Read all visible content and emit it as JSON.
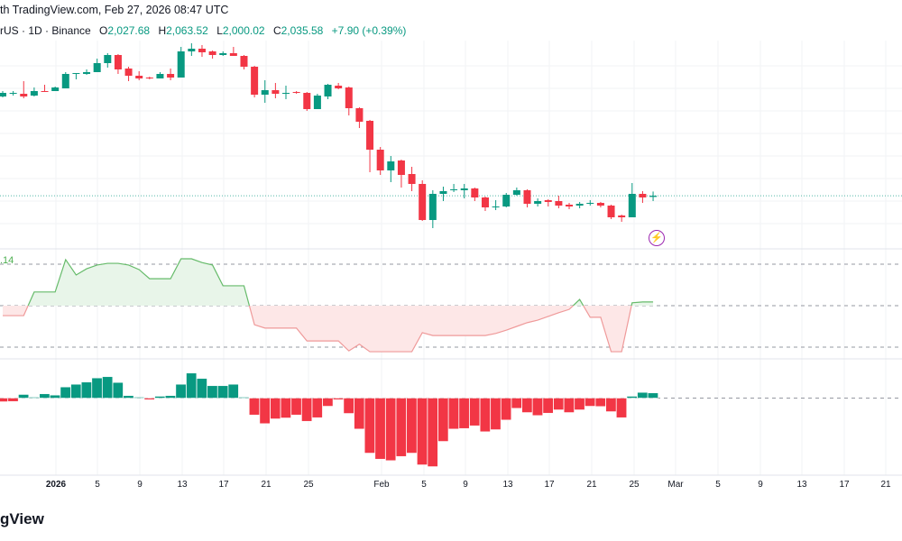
{
  "header": {
    "attribution": "th TradingView.com, Feb 27, 2026 08:47 UTC",
    "symbol_info": "rUS · 1D · Binance",
    "open_label": "O",
    "open": "2,027.68",
    "high_label": "H",
    "high": "2,063.52",
    "low_label": "L",
    "low": "2,000.02",
    "close_label": "C",
    "close": "2,035.58",
    "change": "+7.90 (+0.39%)"
  },
  "oscillator_label": ".14",
  "footer_logo": "gView",
  "colors": {
    "up": "#089981",
    "down": "#f23645",
    "osc_up": "#66bb6a",
    "osc_down": "#ef9a9a",
    "alert": "#9c27b0"
  },
  "icons": {
    "alert": "lightning-icon"
  },
  "chart_data": {
    "type": "candlestick",
    "x_tick_labels": [
      "2026",
      "5",
      "9",
      "13",
      "17",
      "21",
      "25",
      "Feb",
      "5",
      "9",
      "13",
      "17",
      "21",
      "25",
      "Mar",
      "5",
      "9",
      "13",
      "17",
      "21"
    ],
    "last_price": 2035.58,
    "ohlc": [
      [
        2696,
        2732,
        2690,
        2720
      ],
      [
        2714,
        2732,
        2702,
        2720
      ],
      [
        2714,
        2798,
        2684,
        2696
      ],
      [
        2702,
        2756,
        2696,
        2732
      ],
      [
        2732,
        2774,
        2726,
        2726
      ],
      [
        2732,
        2762,
        2732,
        2756
      ],
      [
        2750,
        2858,
        2750,
        2846
      ],
      [
        2846,
        2852,
        2810,
        2852
      ],
      [
        2846,
        2876,
        2840,
        2858
      ],
      [
        2858,
        2948,
        2858,
        2918
      ],
      [
        2918,
        2984,
        2888,
        2972
      ],
      [
        2972,
        2978,
        2846,
        2876
      ],
      [
        2882,
        2894,
        2798,
        2834
      ],
      [
        2834,
        2864,
        2804,
        2816
      ],
      [
        2822,
        2828,
        2810,
        2816
      ],
      [
        2816,
        2858,
        2816,
        2846
      ],
      [
        2846,
        2882,
        2804,
        2822
      ],
      [
        2822,
        3026,
        2822,
        2996
      ],
      [
        2996,
        3050,
        2966,
        3014
      ],
      [
        3014,
        3038,
        2960,
        2990
      ],
      [
        2996,
        3002,
        2948,
        2972
      ],
      [
        2972,
        2996,
        2966,
        2984
      ],
      [
        2984,
        3026,
        2966,
        2966
      ],
      [
        2966,
        2972,
        2876,
        2894
      ],
      [
        2894,
        2900,
        2690,
        2708
      ],
      [
        2708,
        2804,
        2654,
        2738
      ],
      [
        2738,
        2786,
        2684,
        2714
      ],
      [
        2714,
        2768,
        2678,
        2720
      ],
      [
        2726,
        2732,
        2714,
        2720
      ],
      [
        2720,
        2726,
        2600,
        2612
      ],
      [
        2612,
        2714,
        2612,
        2702
      ],
      [
        2696,
        2780,
        2678,
        2774
      ],
      [
        2768,
        2786,
        2744,
        2750
      ],
      [
        2756,
        2762,
        2570,
        2618
      ],
      [
        2618,
        2624,
        2486,
        2528
      ],
      [
        2534,
        2540,
        2192,
        2342
      ],
      [
        2342,
        2360,
        2174,
        2204
      ],
      [
        2204,
        2300,
        2126,
        2264
      ],
      [
        2270,
        2276,
        2090,
        2174
      ],
      [
        2180,
        2228,
        2066,
        2114
      ],
      [
        2114,
        2138,
        1868,
        1874
      ],
      [
        1874,
        2072,
        1820,
        2048
      ],
      [
        2048,
        2096,
        2000,
        2066
      ],
      [
        2072,
        2114,
        2060,
        2078
      ],
      [
        2072,
        2114,
        2018,
        2084
      ],
      [
        2084,
        2090,
        2000,
        2024
      ],
      [
        2024,
        2030,
        1934,
        1958
      ],
      [
        1958,
        2006,
        1940,
        1964
      ],
      [
        1964,
        2054,
        1958,
        2042
      ],
      [
        2042,
        2090,
        2036,
        2072
      ],
      [
        2072,
        2078,
        1958,
        1982
      ],
      [
        1982,
        2018,
        1964,
        2000
      ],
      [
        2006,
        2012,
        1964,
        1994
      ],
      [
        2000,
        2036,
        1952,
        1970
      ],
      [
        1976,
        1988,
        1946,
        1964
      ],
      [
        1970,
        1994,
        1952,
        1982
      ],
      [
        1982,
        2006,
        1970,
        1988
      ],
      [
        1988,
        1994,
        1958,
        1970
      ],
      [
        1970,
        1976,
        1880,
        1892
      ],
      [
        1904,
        1910,
        1862,
        1892
      ],
      [
        1892,
        2120,
        1892,
        2048
      ],
      [
        2048,
        2066,
        1988,
        2024
      ],
      [
        2027.68,
        2063.52,
        2000.02,
        2035.58
      ]
    ],
    "oscillator": {
      "levels": [
        1,
        0,
        -1
      ],
      "values": [
        -0.24,
        -0.24,
        -0.24,
        0.33,
        0.33,
        0.33,
        1.11,
        0.74,
        0.89,
        0.98,
        1.02,
        1.02,
        0.98,
        0.87,
        0.65,
        0.65,
        0.65,
        1.13,
        1.13,
        1.04,
        0.98,
        0.48,
        0.48,
        0.48,
        -0.46,
        -0.54,
        -0.54,
        -0.54,
        -0.54,
        -0.85,
        -0.85,
        -0.85,
        -0.85,
        -1.09,
        -0.93,
        -1.11,
        -1.11,
        -1.11,
        -1.11,
        -1.11,
        -0.65,
        -0.72,
        -0.72,
        -0.72,
        -0.72,
        -0.72,
        -0.72,
        -0.67,
        -0.59,
        -0.5,
        -0.41,
        -0.35,
        -0.26,
        -0.17,
        -0.09,
        0.15,
        -0.28,
        -0.28,
        -1.11,
        -1.11,
        0.07,
        0.09,
        0.09
      ]
    },
    "histogram": [
      -4,
      -3.7,
      4,
      1,
      4.7,
      3.3,
      12.3,
      15.3,
      17.7,
      22.3,
      23.7,
      17.3,
      2.7,
      0.7,
      -1.7,
      2,
      2.7,
      15.3,
      27.7,
      21.7,
      13.7,
      13.7,
      15.3,
      0.7,
      -18.7,
      -28.3,
      -23,
      -22,
      -18.7,
      -25.7,
      -21.7,
      -9,
      -1.7,
      -17,
      -34.3,
      -61,
      -67.7,
      -69.3,
      -64.7,
      -61,
      -74,
      -76,
      -48,
      -34.3,
      -33.7,
      -30.7,
      -37.3,
      -35,
      -24.3,
      -11.3,
      -16,
      -19.3,
      -16.7,
      -13,
      -16,
      -13,
      -9,
      -9.3,
      -15,
      -21.7,
      2,
      6.3,
      5.7
    ]
  }
}
